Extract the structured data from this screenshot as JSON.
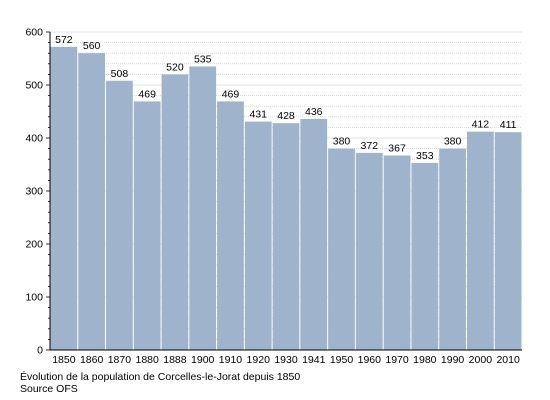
{
  "chart_data": {
    "type": "bar",
    "categories": [
      "1850",
      "1860",
      "1870",
      "1880",
      "1888",
      "1900",
      "1910",
      "1920",
      "1930",
      "1941",
      "1950",
      "1960",
      "1970",
      "1980",
      "1990",
      "2000",
      "2010"
    ],
    "values": [
      572,
      560,
      508,
      469,
      520,
      535,
      469,
      431,
      428,
      436,
      380,
      372,
      367,
      353,
      380,
      412,
      411
    ],
    "ylim": [
      0,
      600
    ],
    "yticks": [
      "0",
      "100",
      "200",
      "300",
      "400",
      "500",
      "600"
    ],
    "grid": true,
    "bar_color": "#9fb4cc"
  },
  "caption": {
    "line1": "Évolution de la population de Corcelles-le-Jorat depuis 1850",
    "line2": "Source OFS"
  }
}
